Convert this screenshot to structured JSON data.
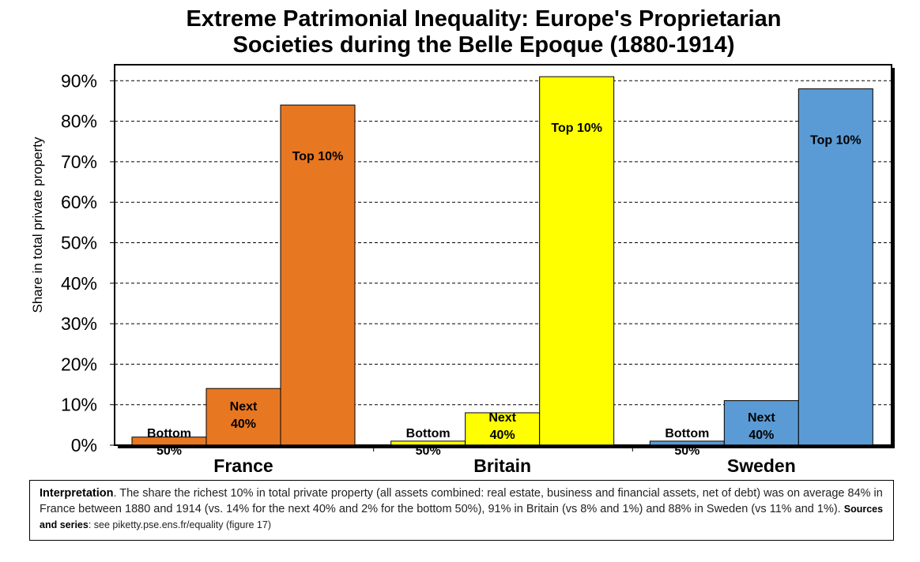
{
  "chart_data": {
    "type": "bar",
    "title_lines": [
      "Extreme Patrimonial Inequality: Europe's Proprietarian",
      "Societies during the Belle Epoque (1880-1914)"
    ],
    "ylabel": "Share in total private property",
    "ylim": [
      0,
      0.95
    ],
    "yticks": [
      "0%",
      "10%",
      "20%",
      "30%",
      "40%",
      "50%",
      "60%",
      "70%",
      "80%",
      "90%"
    ],
    "grid": true,
    "groups": [
      {
        "name": "France",
        "color": "#E87722",
        "bars": [
          {
            "label_lines": [
              "Bottom",
              "50%"
            ],
            "value": 0.02
          },
          {
            "label_lines": [
              "Next",
              "40%"
            ],
            "value": 0.14
          },
          {
            "label_lines": [
              "Top 10%"
            ],
            "value": 0.84
          }
        ]
      },
      {
        "name": "Britain",
        "color": "#FFFF00",
        "bars": [
          {
            "label_lines": [
              "Bottom",
              "50%"
            ],
            "value": 0.01
          },
          {
            "label_lines": [
              "Next",
              "40%"
            ],
            "value": 0.08
          },
          {
            "label_lines": [
              "Top 10%"
            ],
            "value": 0.91
          }
        ]
      },
      {
        "name": "Sweden",
        "color": "#5B9BD5",
        "bars": [
          {
            "label_lines": [
              "Bottom",
              "50%"
            ],
            "value": 0.01
          },
          {
            "label_lines": [
              "Next",
              "40%"
            ],
            "value": 0.11
          },
          {
            "label_lines": [
              "Top 10%"
            ],
            "value": 0.88
          }
        ]
      }
    ]
  },
  "interpretation": {
    "lead": "Interpretation",
    "body": ". The share the richest 10% in total private property (all assets combined: real estate, business and financial assets, net of debt) was on average 84% in France between 1880 and 1914 (vs. 14% for the next 40% and 2% for the bottom 50%), 91% in Britain (vs 8% and 1%) and 88% in Sweden (vs 11% and 1%). ",
    "sources_label": "Sources and series",
    "sources_text": ": see piketty.pse.ens.fr/equality (figure 17)"
  }
}
